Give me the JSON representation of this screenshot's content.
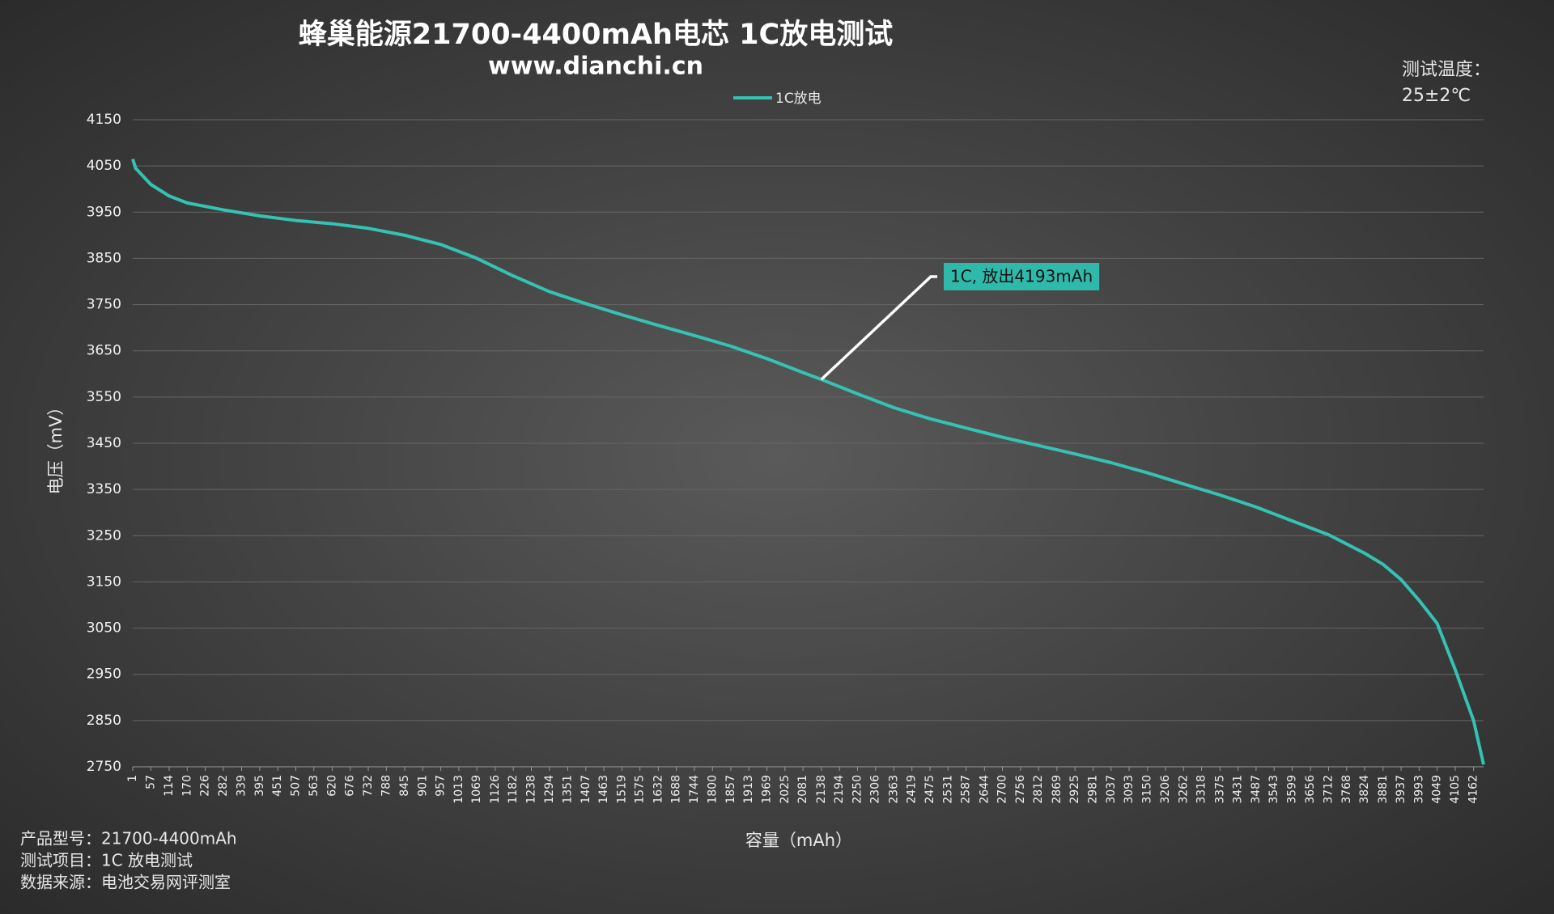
{
  "chart_data": {
    "type": "line",
    "title": "蜂巢能源21700-4400mAh电芯 1C放电测试",
    "subtitle": "www.dianchi.cn",
    "x_label": "容量（mAh）",
    "y_label": "电压（mV）",
    "notes": [
      "测试温度：",
      "25±2℃"
    ],
    "footer": [
      "产品型号：21700-4400mAh",
      "测试项目：1C 放电测试",
      "数据来源：电池交易网评测室"
    ],
    "annotation": {
      "text": "1C, 放出4193mAh",
      "x": 2138
    },
    "legend": "top",
    "grid": true,
    "xlim": [
      1,
      4193
    ],
    "ylim": [
      2750,
      4150
    ],
    "yticks": [
      2750,
      2850,
      2950,
      3050,
      3150,
      3250,
      3350,
      3450,
      3550,
      3650,
      3750,
      3850,
      3950,
      4050,
      4150
    ],
    "xticks": [
      1,
      57,
      114,
      170,
      226,
      282,
      339,
      395,
      451,
      507,
      563,
      620,
      676,
      732,
      788,
      845,
      901,
      957,
      1013,
      1069,
      1126,
      1182,
      1238,
      1294,
      1351,
      1407,
      1463,
      1519,
      1575,
      1632,
      1688,
      1744,
      1800,
      1857,
      1913,
      1969,
      2025,
      2081,
      2138,
      2194,
      2250,
      2306,
      2363,
      2419,
      2475,
      2531,
      2587,
      2644,
      2700,
      2756,
      2812,
      2869,
      2925,
      2981,
      3037,
      3093,
      3150,
      3206,
      3262,
      3318,
      3375,
      3431,
      3487,
      3543,
      3599,
      3656,
      3712,
      3768,
      3824,
      3881,
      3937,
      3993,
      4049,
      4105,
      4162
    ],
    "x": [
      1,
      10,
      57,
      114,
      170,
      282,
      395,
      507,
      620,
      732,
      845,
      957,
      1069,
      1182,
      1294,
      1407,
      1519,
      1632,
      1744,
      1857,
      1969,
      2081,
      2138,
      2250,
      2363,
      2475,
      2587,
      2700,
      2812,
      2925,
      3037,
      3150,
      3262,
      3375,
      3487,
      3599,
      3712,
      3824,
      3881,
      3937,
      3993,
      4049,
      4105,
      4162,
      4193
    ],
    "series": [
      {
        "name": "1C放电",
        "color": "#34c3b3",
        "values": [
          4065,
          4045,
          4010,
          3985,
          3970,
          3955,
          3942,
          3932,
          3925,
          3915,
          3900,
          3880,
          3850,
          3812,
          3778,
          3752,
          3728,
          3705,
          3683,
          3660,
          3633,
          3603,
          3588,
          3557,
          3527,
          3503,
          3483,
          3463,
          3445,
          3427,
          3408,
          3386,
          3362,
          3338,
          3312,
          3282,
          3252,
          3212,
          3188,
          3155,
          3110,
          3060,
          2960,
          2850,
          2755
        ]
      }
    ]
  }
}
